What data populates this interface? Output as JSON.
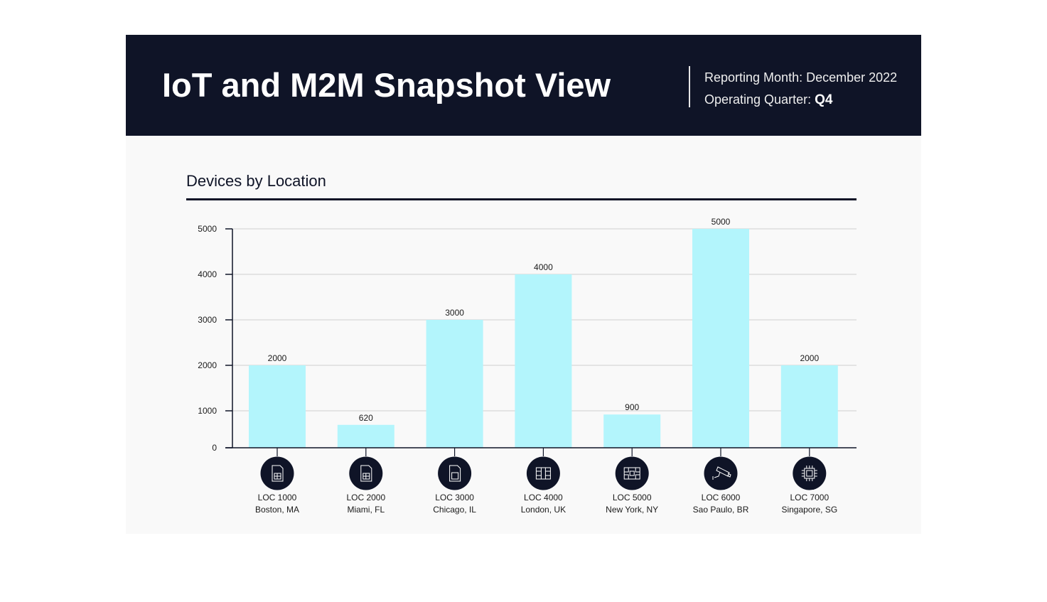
{
  "header": {
    "title": "IoT and M2M Snapshot View",
    "reporting_label": "Reporting Month: December 2022",
    "quarter_label": "Operating Quarter: ",
    "quarter_value": "Q4"
  },
  "colors": {
    "header_bg": "#0f1427",
    "bar": "#b3f5fc",
    "icon_bg": "#0f1427"
  },
  "chart_data": {
    "type": "bar",
    "title": "Devices by Location",
    "xlabel": "",
    "ylabel": "",
    "ylim": [
      0,
      5000
    ],
    "yticks": [
      "0",
      "1000",
      "2000",
      "3000",
      "4000",
      "5000"
    ],
    "grid": true,
    "categories": [
      "LOC 1000",
      "LOC 2000",
      "LOC 3000",
      "LOC 4000",
      "LOC 5000",
      "LOC 6000",
      "LOC 7000"
    ],
    "locations": [
      "Boston, MA",
      "Miami, FL",
      "Chicago, IL",
      "London, UK",
      "New York, NY",
      "Sao Paulo, BR",
      "Singapore, SG"
    ],
    "icons": [
      "sim-card-icon",
      "sim-card-icon",
      "sim-card-blank-icon",
      "chip-contact-icon",
      "chip-contact-alt-icon",
      "security-camera-icon",
      "processor-icon"
    ],
    "values": [
      2000,
      620,
      3000,
      4000,
      900,
      5000,
      2000
    ],
    "value_labels": [
      "2000",
      "620",
      "3000",
      "4000",
      "900",
      "5000",
      "2000"
    ]
  }
}
